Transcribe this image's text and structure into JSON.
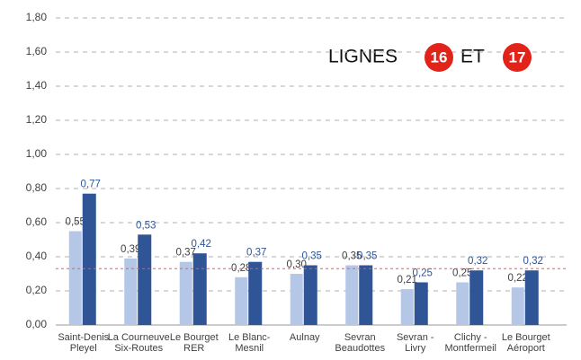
{
  "chart_data": {
    "type": "bar",
    "annotation": {
      "text1": "LIGNES",
      "badge1": "16",
      "text2": "ET",
      "badge2": "17",
      "badge_color": "#e2231a"
    },
    "categories": [
      [
        "Saint-Denis",
        "Pleyel"
      ],
      [
        "La Courneuve",
        "Six-Routes"
      ],
      [
        "Le Bourget",
        "RER"
      ],
      [
        "Le Blanc-",
        "Mesnil"
      ],
      [
        "Aulnay"
      ],
      [
        "Sevran",
        "Beaudottes"
      ],
      [
        "Sevran -",
        "Livry"
      ],
      [
        "Clichy -",
        "Montfermeil"
      ],
      [
        "Le Bourget",
        "Aéroport"
      ]
    ],
    "series": [
      {
        "color": "#b4c7e7",
        "label_color": "#404040",
        "values": [
          0.55,
          0.39,
          0.37,
          0.28,
          0.3,
          0.35,
          0.21,
          0.25,
          0.22
        ],
        "value_labels": [
          "0,55",
          "0,39",
          "0,37",
          "0,28",
          "0,30",
          "0,35",
          "0,21",
          "0,25",
          "0,22"
        ]
      },
      {
        "color": "#2f5597",
        "label_color": "#2f5597",
        "values": [
          0.77,
          0.53,
          0.42,
          0.37,
          0.35,
          0.35,
          0.25,
          0.32,
          0.32
        ],
        "value_labels": [
          "0,77",
          "0,53",
          "0,42",
          "0,37",
          "0,35",
          "0,35",
          "0,25",
          "0,32",
          "0,32"
        ]
      }
    ],
    "reference_line": {
      "value": 0.33,
      "color": "#e06060"
    },
    "ylim": [
      0,
      1.8
    ],
    "yticks": [
      {
        "value": 0,
        "label": "0,00"
      },
      {
        "value": 0.2,
        "label": "0,20"
      },
      {
        "value": 0.4,
        "label": "0,40"
      },
      {
        "value": 0.6,
        "label": "0,60"
      },
      {
        "value": 0.8,
        "label": "0,80"
      },
      {
        "value": 1.0,
        "label": "1,00"
      },
      {
        "value": 1.2,
        "label": "1,20"
      },
      {
        "value": 1.4,
        "label": "1,40"
      },
      {
        "value": 1.6,
        "label": "1,60"
      },
      {
        "value": 1.8,
        "label": "1,80"
      }
    ],
    "grid": true
  }
}
